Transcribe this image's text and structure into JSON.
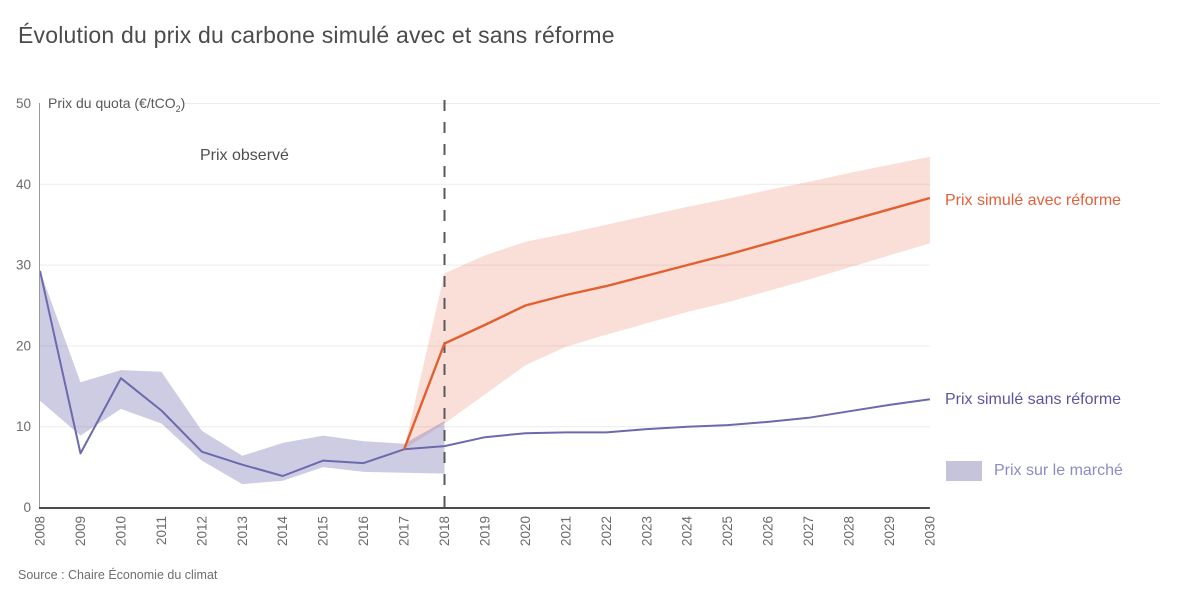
{
  "title": "Évolution du prix du carbone simulé avec et sans réforme",
  "source": "Source : Chaire Économie du climat",
  "axis_title": {
    "prefix": "Prix du quota (€/tCO",
    "sub": "2",
    "suffix": ")"
  },
  "annotation_observed": "Prix observé",
  "legend": {
    "with_reform": "Prix simulé avec réforme",
    "without_reform": "Prix simulé sans réforme",
    "market": "Prix sur le marché"
  },
  "colors": {
    "orange_line": "#e2602f",
    "orange_band": "#e6603a",
    "purple_line": "#6d69ad",
    "purple_band": "#6d69ad",
    "with_reform_label": "#e2603a",
    "without_reform_label": "#5b56a0",
    "market_label": "#8d8ac8",
    "dashed_line": "#58595b",
    "grid": "#ececec",
    "x_axis": "#4a4b4d",
    "y_axis": "#9b9b9b",
    "tick_text": "#6b6b6b"
  },
  "chart_data": {
    "type": "line",
    "x": [
      2008,
      2009,
      2010,
      2011,
      2012,
      2013,
      2014,
      2015,
      2016,
      2017,
      2018,
      2019,
      2020,
      2021,
      2022,
      2023,
      2024,
      2025,
      2026,
      2027,
      2028,
      2029,
      2030
    ],
    "ylim": [
      0,
      50
    ],
    "yticks": [
      0,
      10,
      20,
      30,
      40,
      50
    ],
    "dashed_vertical_x": 2018,
    "grid": "horizontal only",
    "legend_position": "right, outside plot",
    "series": [
      {
        "name": "Prix simulé sans réforme",
        "years": [
          2008,
          2009,
          2010,
          2011,
          2012,
          2013,
          2014,
          2015,
          2016,
          2017,
          2018,
          2019,
          2020,
          2021,
          2022,
          2023,
          2024,
          2025,
          2026,
          2027,
          2028,
          2029,
          2030
        ],
        "values": [
          29.3,
          6.7,
          16.0,
          12.0,
          6.9,
          5.3,
          3.9,
          5.8,
          5.5,
          7.2,
          7.6,
          8.7,
          9.2,
          9.3,
          9.3,
          9.7,
          10.0,
          10.2,
          10.6,
          11.1,
          11.9,
          12.7,
          13.4
        ]
      },
      {
        "name": "Prix simulé avec réforme",
        "years": [
          2017,
          2018,
          2019,
          2020,
          2021,
          2022,
          2023,
          2024,
          2025,
          2026,
          2027,
          2028,
          2029,
          2030
        ],
        "values": [
          7.2,
          20.3,
          22.6,
          25.0,
          26.3,
          27.4,
          28.7,
          30.0,
          31.3,
          32.7,
          34.1,
          35.5,
          36.9,
          38.3
        ]
      }
    ],
    "bands": [
      {
        "name": "Prix sur le marché",
        "years": [
          2008,
          2009,
          2010,
          2011,
          2012,
          2013,
          2014,
          2015,
          2016,
          2017,
          2018
        ],
        "low": [
          13.2,
          8.9,
          12.2,
          10.4,
          5.8,
          2.9,
          3.3,
          5.0,
          4.4,
          4.3,
          4.2
        ],
        "high": [
          29.3,
          15.5,
          17.0,
          16.8,
          9.5,
          6.4,
          8.0,
          8.9,
          8.2,
          7.9,
          10.7
        ]
      },
      {
        "name": "Intervalle prix simulé avec réforme",
        "years": [
          2017,
          2018,
          2019,
          2020,
          2021,
          2022,
          2023,
          2024,
          2025,
          2026,
          2027,
          2028,
          2029,
          2030
        ],
        "low": [
          7.2,
          10.4,
          14.0,
          17.6,
          19.9,
          21.4,
          22.8,
          24.2,
          25.4,
          26.8,
          28.2,
          29.7,
          31.2,
          32.7
        ],
        "high": [
          7.2,
          29.0,
          31.2,
          32.9,
          33.9,
          35.0,
          36.1,
          37.2,
          38.2,
          39.3,
          40.3,
          41.4,
          42.4,
          43.4
        ]
      }
    ]
  }
}
